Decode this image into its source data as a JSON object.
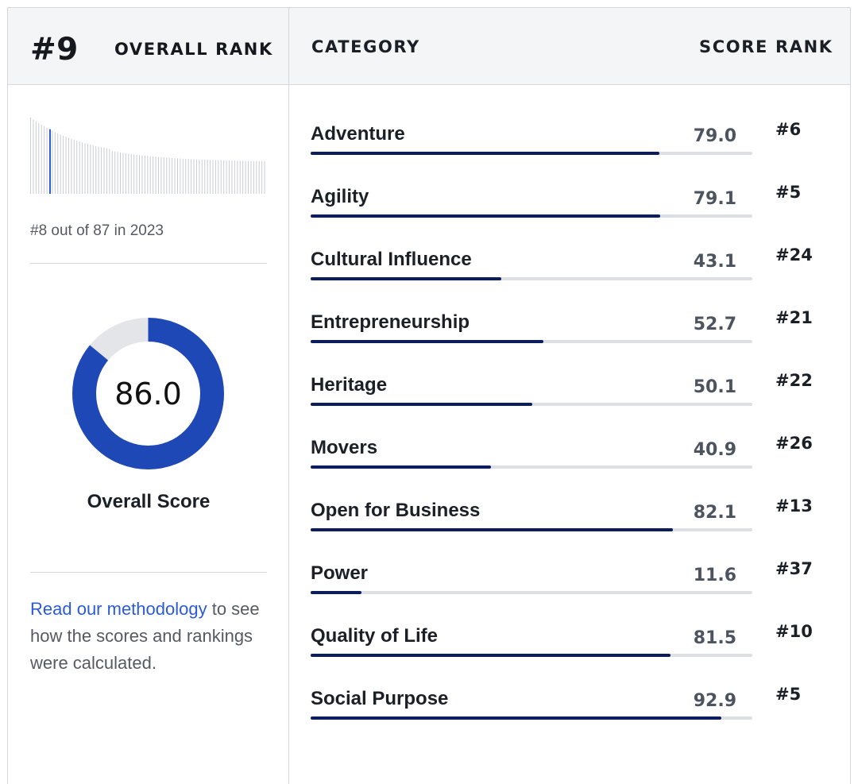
{
  "header": {
    "overall_rank": "#9",
    "overall_rank_label": "OVERALL RANK",
    "category_label": "CATEGORY",
    "score_label": "SCORE",
    "rank_label": "RANK"
  },
  "history": {
    "text": "#8 out of 87 in 2023",
    "highlight_position": 8,
    "total": 87
  },
  "overall": {
    "score": "86.0",
    "score_value": 86.0,
    "label": "Overall Score"
  },
  "methodology": {
    "link_text": "Read our methodology",
    "rest_text": " to see how the scores and rankings were calculated."
  },
  "colors": {
    "accent_blue": "#1e48b5",
    "bar_fill": "#0c1d5e",
    "link": "#2a5bd7",
    "track": "#dcdfe3"
  },
  "categories": [
    {
      "name": "Adventure",
      "score": "79.0",
      "value": 79.0,
      "rank": "#6"
    },
    {
      "name": "Agility",
      "score": "79.1",
      "value": 79.1,
      "rank": "#5"
    },
    {
      "name": "Cultural Influence",
      "score": "43.1",
      "value": 43.1,
      "rank": "#24"
    },
    {
      "name": "Entrepreneurship",
      "score": "52.7",
      "value": 52.7,
      "rank": "#21"
    },
    {
      "name": "Heritage",
      "score": "50.1",
      "value": 50.1,
      "rank": "#22"
    },
    {
      "name": "Movers",
      "score": "40.9",
      "value": 40.9,
      "rank": "#26"
    },
    {
      "name": "Open for Business",
      "score": "82.1",
      "value": 82.1,
      "rank": "#13"
    },
    {
      "name": "Power",
      "score": "11.6",
      "value": 11.6,
      "rank": "#37"
    },
    {
      "name": "Quality of Life",
      "score": "81.5",
      "value": 81.5,
      "rank": "#10"
    },
    {
      "name": "Social Purpose",
      "score": "92.9",
      "value": 92.9,
      "rank": "#5"
    }
  ]
}
